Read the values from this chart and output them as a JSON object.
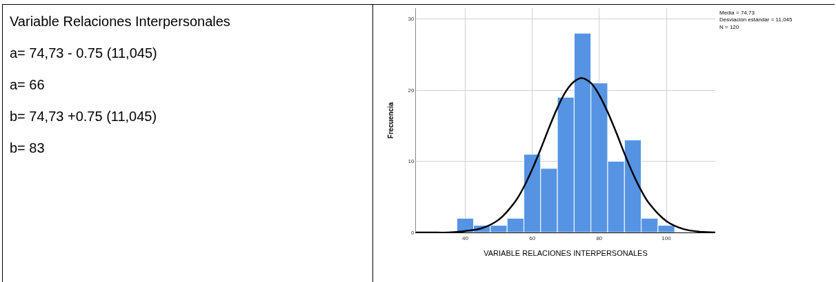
{
  "chart_data": {
    "type": "histogram",
    "xlabel": "VARIABLE RELACIONES INTERPERSONALES",
    "ylabel": "Frecuencia",
    "bins": [
      37.5,
      42.5,
      47.5,
      52.5,
      57.5,
      62.5,
      67.5,
      72.5,
      77.5,
      82.5,
      87.5,
      92.5,
      97.5,
      102.5
    ],
    "values": [
      2,
      1,
      1,
      2,
      11,
      9,
      19,
      28,
      21,
      10,
      13,
      2,
      1
    ],
    "color": "#5694e3",
    "series": [
      {
        "type": "line",
        "color": "#000000",
        "x": [
          25.3,
          30,
          35,
          40,
          45,
          50,
          55,
          57.5,
          60,
          62.5,
          65,
          67.5,
          70,
          72.5,
          74.73,
          77.5,
          80,
          82.5,
          85,
          87.5,
          90,
          92.5,
          95,
          100,
          105,
          110,
          114.6
        ],
        "values": [
          0,
          0,
          0,
          0.2,
          0.6,
          1.8,
          4.4,
          6.4,
          8.9,
          11.7,
          14.7,
          17.5,
          19.8,
          21.2,
          21.7,
          21,
          19.3,
          16.9,
          14.1,
          11.1,
          8.3,
          5.9,
          4,
          1.6,
          0.5,
          0.1,
          0
        ]
      }
    ],
    "xlim": [
      25.3,
      114.6
    ],
    "xticks": [
      40,
      60,
      80,
      100
    ],
    "ylim": [
      0,
      31.5
    ],
    "yticks": [
      0,
      10,
      20,
      30
    ],
    "grid": true,
    "marker": "none",
    "line_style": "solid",
    "annotations": [
      "Variable Relaciones Interpersonales",
      "a= 74,73 - 0.75 (11,045)",
      "a= 66",
      "b= 74,73 +0.75 (11,045)",
      "b= 83",
      "Media = 74,73\nDesviación estándar = 11,045\nN = 120"
    ]
  }
}
